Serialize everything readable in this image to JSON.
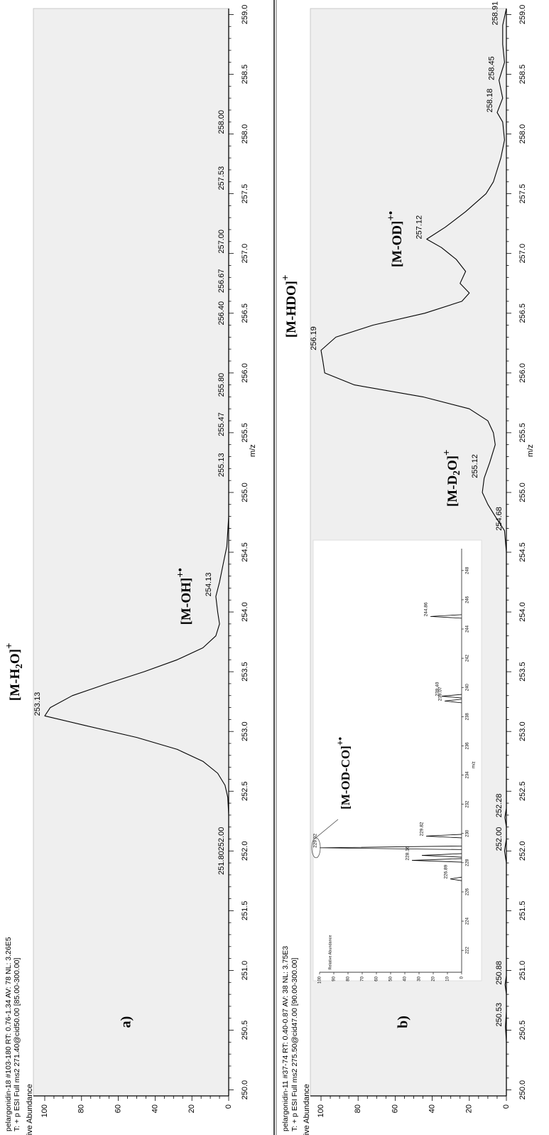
{
  "figure": {
    "xlabel": "m/z",
    "ylabel": "Relative Abundance"
  },
  "chart_data": [
    {
      "type": "line",
      "panel_label": "a)",
      "header_lines": [
        "pelargonidin-18 #103-180  RT: 0.76-1.34  AV: 78  NL: 3.26E5",
        "T: + p ESI Full ms2 271.40@cid50.00 [85.00-300.00]"
      ],
      "xlabel": "m/z",
      "ylabel": "Relative Abundance",
      "xlim": [
        249.95,
        259.05
      ],
      "ylim": [
        0,
        100
      ],
      "x_ticks": [
        "250.0",
        "250.5",
        "251.0",
        "251.5",
        "252.0",
        "252.5",
        "253.0",
        "253.5",
        "254.0",
        "254.5",
        "255.0",
        "255.5",
        "256.0",
        "256.5",
        "257.0",
        "257.5",
        "258.0",
        "258.5",
        "259.0"
      ],
      "y_ticks": [
        "0",
        "20",
        "40",
        "60",
        "80",
        "100"
      ],
      "x": [
        249.95,
        250.5,
        251.0,
        251.5,
        251.8,
        252.0,
        252.3,
        252.45,
        252.55,
        252.65,
        252.75,
        252.85,
        252.95,
        253.05,
        253.13,
        253.2,
        253.3,
        253.4,
        253.5,
        253.6,
        253.7,
        253.8,
        253.9,
        254.0,
        254.13,
        254.25,
        254.4,
        254.55,
        254.8,
        255.13,
        255.47,
        255.8,
        256.4,
        256.67,
        257.0,
        257.53,
        258.0,
        258.5,
        259.05
      ],
      "y": [
        0,
        0,
        0,
        0,
        0,
        0,
        0,
        0.5,
        2,
        6,
        14,
        28,
        50,
        78,
        100,
        97,
        85,
        66,
        46,
        28,
        14,
        7,
        5,
        6,
        7,
        5,
        3,
        1,
        0,
        0,
        0,
        0,
        0,
        0,
        0,
        0,
        0,
        0,
        0
      ],
      "peak_labels": [
        {
          "x": 251.8,
          "y": 0,
          "text": "251.80"
        },
        {
          "x": 252.0,
          "y": 0,
          "text": "252.00"
        },
        {
          "x": 253.13,
          "y": 100,
          "text": "253.13"
        },
        {
          "x": 254.13,
          "y": 7,
          "text": "254.13"
        },
        {
          "x": 255.13,
          "y": 0,
          "text": "255.13"
        },
        {
          "x": 255.47,
          "y": 0,
          "text": "255.47"
        },
        {
          "x": 255.8,
          "y": 0,
          "text": "255.80"
        },
        {
          "x": 256.4,
          "y": 0,
          "text": "256.40"
        },
        {
          "x": 256.67,
          "y": 0,
          "text": "256.67"
        },
        {
          "x": 257.0,
          "y": 0,
          "text": "257.00"
        },
        {
          "x": 257.53,
          "y": 0,
          "text": "257.53"
        },
        {
          "x": 258.0,
          "y": 0,
          "text": "258.00"
        }
      ],
      "annotations": [
        {
          "x": 253.13,
          "y": 100,
          "base": "[M-H",
          "sub": "2",
          "tail": "O]",
          "sup": "+"
        },
        {
          "x": 254.13,
          "y": 7,
          "base": "[M-OH]",
          "sub": "",
          "tail": "",
          "sup": "+•"
        }
      ]
    },
    {
      "type": "line",
      "panel_label": "b)",
      "header_lines": [
        "pelargonidin-11 #37-74  RT: 0.40-0.87  AV: 38  NL: 3.75E3",
        "T: + p ESI Full ms2 275.50@cid47.00 [90.00-300.00]"
      ],
      "xlabel": "m/z",
      "ylabel": "Relative Abundance",
      "xlim": [
        249.95,
        259.05
      ],
      "ylim": [
        0,
        100
      ],
      "x_ticks": [
        "250.0",
        "250.5",
        "251.0",
        "251.5",
        "252.0",
        "252.5",
        "253.0",
        "253.5",
        "254.0",
        "254.5",
        "255.0",
        "255.5",
        "256.0",
        "256.5",
        "257.0",
        "257.5",
        "258.0",
        "258.5",
        "259.0"
      ],
      "y_ticks": [
        "0",
        "20",
        "40",
        "60",
        "80",
        "100"
      ],
      "x": [
        249.95,
        250.4,
        250.53,
        250.66,
        250.8,
        250.88,
        250.96,
        251.5,
        251.9,
        252.0,
        252.1,
        252.2,
        252.28,
        252.36,
        252.6,
        254.5,
        254.68,
        254.8,
        254.9,
        255.0,
        255.12,
        255.25,
        255.4,
        255.5,
        255.6,
        255.7,
        255.8,
        255.9,
        256.0,
        256.1,
        256.19,
        256.3,
        256.4,
        256.5,
        256.6,
        256.67,
        256.75,
        256.85,
        256.95,
        257.05,
        257.12,
        257.22,
        257.35,
        257.5,
        257.6,
        257.7,
        257.8,
        257.95,
        258.1,
        258.18,
        258.3,
        258.45,
        258.6,
        258.75,
        258.91,
        259.05
      ],
      "y": [
        0,
        0,
        0.5,
        0,
        0,
        0.7,
        0,
        0,
        0,
        1,
        0,
        0,
        0.8,
        0,
        0,
        0,
        1,
        6,
        10,
        13,
        12,
        9,
        6,
        7,
        10,
        20,
        45,
        82,
        98,
        99,
        100,
        92,
        72,
        44,
        24,
        20,
        25,
        22,
        27,
        35,
        43,
        33,
        22,
        11,
        7,
        5,
        3,
        1,
        2,
        5,
        2,
        4,
        1,
        2,
        2,
        0
      ],
      "peak_labels": [
        {
          "x": 250.53,
          "y": 0,
          "text": "250.53"
        },
        {
          "x": 250.88,
          "y": 0,
          "text": "250.88"
        },
        {
          "x": 252.0,
          "y": 0,
          "text": "252.00"
        },
        {
          "x": 252.28,
          "y": 0,
          "text": "252.28"
        },
        {
          "x": 254.68,
          "y": 0,
          "text": "254.68"
        },
        {
          "x": 255.12,
          "y": 13,
          "text": "255.12"
        },
        {
          "x": 256.19,
          "y": 100,
          "text": "256.19"
        },
        {
          "x": 257.12,
          "y": 43,
          "text": "257.12"
        },
        {
          "x": 258.18,
          "y": 5,
          "text": "258.18"
        },
        {
          "x": 258.45,
          "y": 4,
          "text": "258.45"
        },
        {
          "x": 258.91,
          "y": 2,
          "text": "258.91"
        }
      ],
      "annotations": [
        {
          "x": 255.12,
          "y": 13,
          "base": "[M-D",
          "sub": "2",
          "tail": "O]",
          "sup": "+"
        },
        {
          "x": 256.19,
          "y": 100,
          "base": "[M-HDO]",
          "sub": "",
          "tail": "",
          "sup": "+"
        },
        {
          "x": 257.12,
          "y": 43,
          "base": "[M-OD]",
          "sub": "",
          "tail": "",
          "sup": "+•"
        }
      ]
    },
    {
      "type": "bar",
      "inset": true,
      "xlabel": "m/z",
      "ylabel": "Relative Abundance",
      "xlim": [
        220.5,
        249.5
      ],
      "ylim": [
        0,
        100
      ],
      "x_ticks": [
        "222",
        "224",
        "226",
        "228",
        "230",
        "232",
        "234",
        "236",
        "238",
        "240",
        "242",
        "244",
        "246",
        "248"
      ],
      "y_ticks": [
        "0",
        "10",
        "20",
        "30",
        "40",
        "50",
        "60",
        "70",
        "80",
        "90",
        "100"
      ],
      "peaks": [
        {
          "x": 226.89,
          "y": 8
        },
        {
          "x": 228.16,
          "y": 35
        },
        {
          "x": 228.5,
          "y": 28
        },
        {
          "x": 229.02,
          "y": 100
        },
        {
          "x": 229.82,
          "y": 25
        },
        {
          "x": 239.07,
          "y": 12
        },
        {
          "x": 239.4,
          "y": 14
        },
        {
          "x": 244.86,
          "y": 22
        }
      ],
      "peak_labels": [
        {
          "x": 226.89,
          "y": 8,
          "text": "226.89"
        },
        {
          "x": 228.16,
          "y": 35,
          "text": "228.16"
        },
        {
          "x": 229.02,
          "y": 100,
          "text": "229.02"
        },
        {
          "x": 229.82,
          "y": 25,
          "text": "229.82"
        },
        {
          "x": 239.07,
          "y": 12,
          "text": "239.07"
        },
        {
          "x": 239.4,
          "y": 14,
          "text": "239.40"
        },
        {
          "x": 244.86,
          "y": 22,
          "text": "244.86"
        }
      ],
      "annotation": {
        "x": 229.02,
        "y": 100,
        "base": "[M-OD-CO]",
        "sup": "+•"
      }
    }
  ]
}
